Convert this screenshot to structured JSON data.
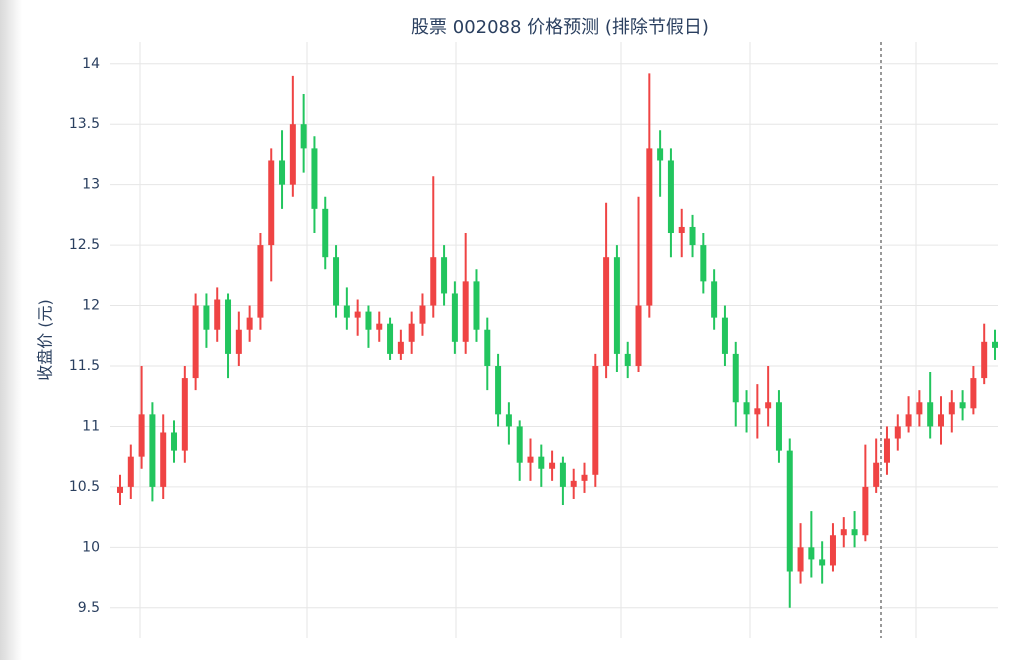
{
  "chart_data": {
    "type": "candlestick",
    "title": "股票 002088 价格预测 (排除节假日)",
    "y_label": "收盘价 (元)",
    "increasing_color": "#ef4444",
    "decreasing_color": "#22c55e",
    "ylim": [
      9.25,
      14.18
    ],
    "yticks": [
      9.5,
      10,
      10.5,
      11,
      11.5,
      12,
      12.5,
      13,
      13.5,
      14
    ],
    "grid": true,
    "open": [
      10.45,
      10.5,
      10.75,
      11.1,
      10.5,
      10.95,
      10.8,
      11.4,
      12.0,
      11.8,
      12.05,
      11.6,
      11.8,
      11.9,
      12.5,
      13.2,
      13.0,
      13.5,
      13.3,
      12.8,
      12.4,
      12.0,
      11.9,
      11.95,
      11.8,
      11.85,
      11.6,
      11.7,
      11.85,
      12.0,
      12.4,
      12.1,
      11.7,
      12.2,
      11.8,
      11.5,
      11.1,
      11.0,
      10.7,
      10.75,
      10.65,
      10.7,
      10.5,
      10.55,
      10.6,
      11.5,
      12.4,
      11.6,
      11.5,
      12.0,
      13.3,
      13.2,
      12.6,
      12.65,
      12.5,
      12.2,
      11.9,
      11.6,
      11.2,
      11.1,
      11.15,
      11.2,
      10.8,
      9.8,
      10.0,
      9.9,
      9.85,
      10.1,
      10.15,
      10.1,
      10.5,
      10.7,
      10.9,
      11.0,
      11.1,
      11.2,
      11.0,
      11.1,
      11.2,
      11.15,
      11.4,
      11.7
    ],
    "high": [
      10.6,
      10.85,
      11.5,
      11.2,
      11.1,
      11.05,
      11.5,
      12.1,
      12.1,
      12.15,
      12.1,
      11.95,
      12.0,
      12.6,
      13.3,
      13.45,
      13.9,
      13.75,
      13.4,
      12.9,
      12.5,
      12.15,
      12.05,
      12.0,
      11.95,
      11.9,
      11.8,
      11.95,
      12.1,
      13.07,
      12.5,
      12.2,
      12.6,
      12.3,
      11.9,
      11.6,
      11.2,
      11.05,
      10.9,
      10.85,
      10.8,
      10.75,
      10.65,
      10.7,
      11.6,
      12.85,
      12.5,
      11.7,
      12.9,
      13.92,
      13.45,
      13.3,
      12.8,
      12.75,
      12.6,
      12.3,
      12.0,
      11.7,
      11.3,
      11.35,
      11.5,
      11.3,
      10.9,
      10.2,
      10.3,
      10.05,
      10.2,
      10.25,
      10.3,
      10.85,
      10.9,
      11.0,
      11.1,
      11.25,
      11.3,
      11.45,
      11.25,
      11.3,
      11.3,
      11.5,
      11.85,
      11.8
    ],
    "low": [
      10.35,
      10.4,
      10.65,
      10.38,
      10.4,
      10.7,
      10.7,
      11.3,
      11.65,
      11.7,
      11.4,
      11.5,
      11.7,
      11.8,
      12.2,
      12.8,
      12.9,
      13.1,
      12.6,
      12.3,
      11.9,
      11.8,
      11.75,
      11.65,
      11.7,
      11.55,
      11.55,
      11.6,
      11.75,
      11.9,
      12.0,
      11.6,
      11.6,
      11.7,
      11.3,
      11.0,
      10.85,
      10.55,
      10.55,
      10.5,
      10.55,
      10.35,
      10.4,
      10.45,
      10.5,
      11.4,
      11.45,
      11.4,
      11.45,
      11.9,
      12.9,
      12.4,
      12.4,
      12.4,
      12.1,
      11.8,
      11.5,
      11.0,
      10.95,
      10.9,
      11.0,
      10.7,
      9.5,
      9.7,
      9.75,
      9.7,
      9.8,
      10.0,
      10.0,
      10.05,
      10.45,
      10.6,
      10.8,
      10.95,
      11.0,
      10.9,
      10.85,
      10.95,
      11.05,
      11.1,
      11.35,
      11.55
    ],
    "close": [
      10.5,
      10.75,
      11.1,
      10.5,
      10.95,
      10.8,
      11.4,
      12.0,
      11.8,
      12.05,
      11.6,
      11.8,
      11.9,
      12.5,
      13.2,
      13.0,
      13.5,
      13.3,
      12.8,
      12.4,
      12.0,
      11.9,
      11.95,
      11.8,
      11.85,
      11.6,
      11.7,
      11.85,
      12.0,
      12.4,
      12.1,
      11.7,
      12.2,
      11.8,
      11.5,
      11.1,
      11.0,
      10.7,
      10.75,
      10.65,
      10.7,
      10.5,
      10.55,
      10.6,
      11.5,
      12.4,
      11.6,
      11.5,
      12.0,
      13.3,
      13.2,
      12.6,
      12.65,
      12.5,
      12.2,
      11.9,
      11.6,
      11.2,
      11.1,
      11.15,
      11.2,
      10.8,
      9.8,
      10.0,
      9.9,
      9.85,
      10.1,
      10.15,
      10.1,
      10.5,
      10.7,
      10.9,
      11.0,
      11.1,
      11.2,
      11.0,
      11.1,
      11.2,
      11.15,
      11.4,
      11.7,
      11.65
    ]
  }
}
